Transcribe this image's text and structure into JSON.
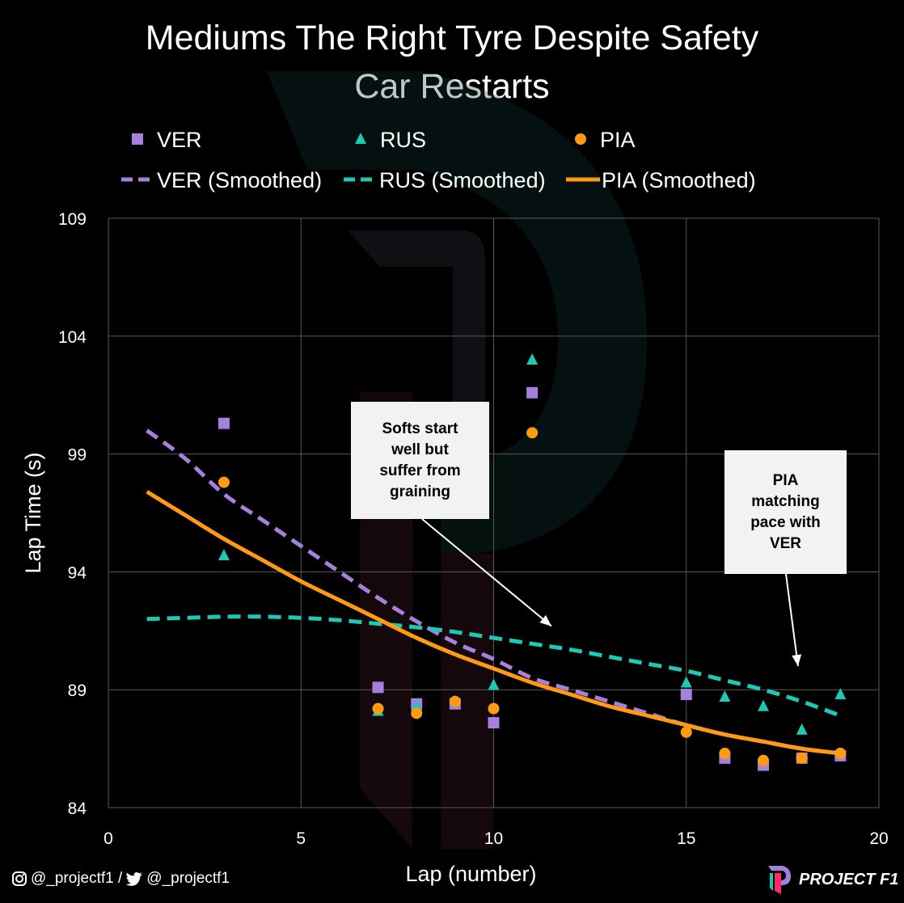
{
  "header": {
    "title_line1": "Mediums The Right Tyre Despite Safety",
    "title_line2": "Car Restarts"
  },
  "colors": {
    "ver": "#a77fdc",
    "rus": "#1ec8b4",
    "pia": "#ff9a12",
    "grid": "#595959",
    "callout_bg": "#f2f2f2"
  },
  "chart_data": {
    "type": "scatter",
    "title": "Mediums The Right Tyre Despite Safety Car Restarts",
    "xlabel": "Lap (number)",
    "ylabel": "Lap Time (s)",
    "xlim": [
      0,
      20
    ],
    "ylim": [
      84,
      109
    ],
    "x_ticks": [
      0,
      5,
      10,
      15,
      20
    ],
    "y_ticks": [
      84,
      89,
      94,
      99,
      104,
      109
    ],
    "grid": true,
    "legend_position": "top",
    "series": [
      {
        "name": "VER",
        "marker": "square",
        "x": [
          3,
          7,
          8,
          9,
          10,
          11,
          15,
          16,
          17,
          18,
          19
        ],
        "y": [
          100.3,
          89.1,
          88.4,
          88.4,
          87.6,
          101.6,
          88.8,
          86.1,
          85.8,
          86.1,
          86.2
        ]
      },
      {
        "name": "RUS",
        "marker": "triangle",
        "x": [
          3,
          7,
          8,
          9,
          10,
          11,
          15,
          16,
          17,
          18,
          19
        ],
        "y": [
          94.7,
          88.1,
          88.3,
          88.5,
          89.2,
          103.0,
          89.3,
          88.7,
          88.3,
          87.3,
          88.8
        ]
      },
      {
        "name": "PIA",
        "marker": "circle",
        "x": [
          3,
          7,
          8,
          9,
          10,
          11,
          15,
          16,
          17,
          18,
          19
        ],
        "y": [
          97.8,
          88.2,
          88.0,
          88.5,
          88.2,
          99.9,
          87.2,
          86.3,
          86.0,
          86.1,
          86.3
        ]
      },
      {
        "name": "VER (Smoothed)",
        "style": "dashed",
        "x": [
          1,
          2,
          3,
          4,
          5,
          6,
          7,
          8,
          9,
          10,
          11,
          12,
          13,
          14,
          15,
          16,
          17,
          18,
          19
        ],
        "y": [
          100.0,
          98.8,
          97.3,
          96.2,
          95.1,
          94.0,
          92.9,
          91.9,
          91.0,
          90.3,
          89.5,
          89.0,
          88.5,
          88.0,
          87.5,
          87.1,
          86.8,
          86.5,
          86.3
        ]
      },
      {
        "name": "RUS (Smoothed)",
        "style": "dashed",
        "x": [
          1,
          2,
          3,
          4,
          5,
          6,
          7,
          8,
          9,
          10,
          11,
          12,
          13,
          14,
          15,
          16,
          17,
          18,
          19
        ],
        "y": [
          92.0,
          92.05,
          92.1,
          92.1,
          92.05,
          91.95,
          91.8,
          91.65,
          91.45,
          91.2,
          90.95,
          90.7,
          90.4,
          90.1,
          89.8,
          89.4,
          89.0,
          88.5,
          87.9
        ]
      },
      {
        "name": "PIA (Smoothed)",
        "style": "solid",
        "x": [
          1,
          2,
          3,
          4,
          5,
          6,
          7,
          8,
          9,
          10,
          11,
          12,
          13,
          14,
          15,
          16,
          17,
          18,
          19
        ],
        "y": [
          97.4,
          96.4,
          95.4,
          94.5,
          93.6,
          92.8,
          92.0,
          91.2,
          90.5,
          89.9,
          89.3,
          88.8,
          88.3,
          87.9,
          87.5,
          87.1,
          86.8,
          86.5,
          86.3
        ]
      }
    ],
    "annotations": [
      {
        "text": "Softs start\nwell but\nsuffer from\ngraining",
        "arrow_to": [
          11.5,
          91.7
        ]
      },
      {
        "text": "PIA\nmatching\npace with\nVER",
        "arrow_to": [
          17.9,
          90.0
        ]
      }
    ]
  },
  "footer": {
    "handles": "@_projectf1 / ",
    "twitter_handle": "@_projectf1",
    "brand": "PROJECT F1"
  }
}
